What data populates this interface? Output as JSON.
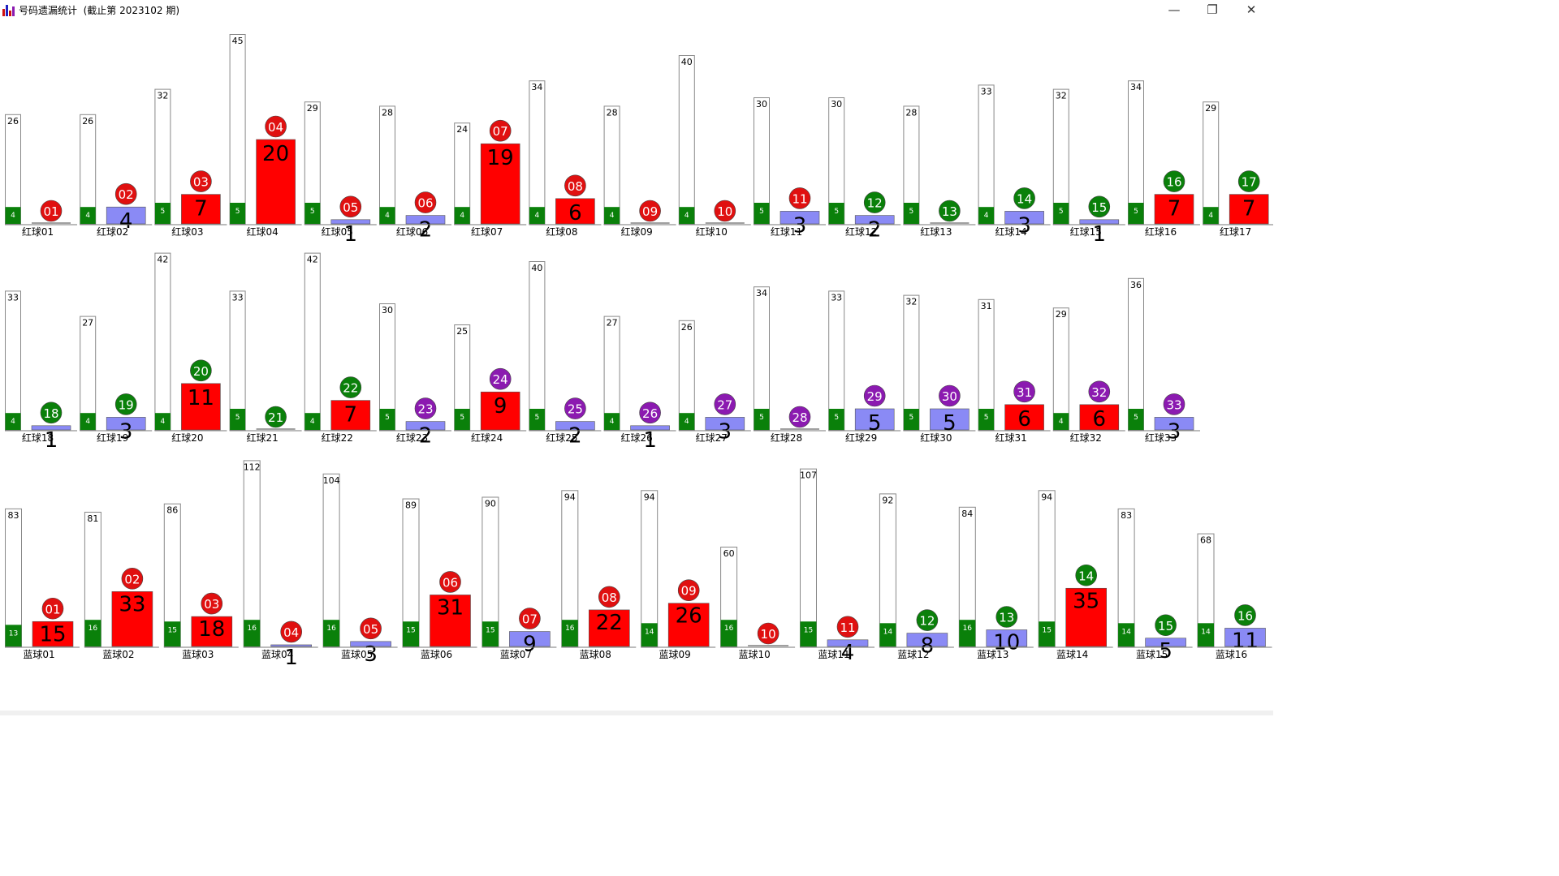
{
  "window": {
    "title": "号码遗漏统计  (截止第 2023102 期)",
    "minimize_glyph": "—",
    "restore_glyph": "❐",
    "close_glyph": "✕"
  },
  "colors": {
    "current_red": "#ff0000",
    "current_blue": "#8a8af5",
    "green": "#0a800a",
    "purple": "#8b1ab0",
    "circle_red": "#e01010",
    "outline": "#888888"
  },
  "chart_data": {
    "type": "bar",
    "sections": [
      {
        "name": "red-balls-1",
        "items": [
          {
            "label": "红球01",
            "num": "01",
            "max": 26,
            "avg": 4,
            "current": 0,
            "circle": "red"
          },
          {
            "label": "红球02",
            "num": "02",
            "max": 26,
            "avg": 4,
            "current": 4,
            "circle": "red"
          },
          {
            "label": "红球03",
            "num": "03",
            "max": 32,
            "avg": 5,
            "current": 7,
            "circle": "red"
          },
          {
            "label": "红球04",
            "num": "04",
            "max": 45,
            "avg": 5,
            "current": 20,
            "circle": "red"
          },
          {
            "label": "红球05",
            "num": "05",
            "max": 29,
            "avg": 5,
            "current": 1,
            "circle": "red"
          },
          {
            "label": "红球06",
            "num": "06",
            "max": 28,
            "avg": 4,
            "current": 2,
            "circle": "red"
          },
          {
            "label": "红球07",
            "num": "07",
            "max": 24,
            "avg": 4,
            "current": 19,
            "circle": "red"
          },
          {
            "label": "红球08",
            "num": "08",
            "max": 34,
            "avg": 4,
            "current": 6,
            "circle": "red"
          },
          {
            "label": "红球09",
            "num": "09",
            "max": 28,
            "avg": 4,
            "current": 0,
            "circle": "red"
          },
          {
            "label": "红球10",
            "num": "10",
            "max": 40,
            "avg": 4,
            "current": 0,
            "circle": "red"
          },
          {
            "label": "红球11",
            "num": "11",
            "max": 30,
            "avg": 5,
            "current": 3,
            "circle": "red"
          },
          {
            "label": "红球12",
            "num": "12",
            "max": 30,
            "avg": 5,
            "current": 2,
            "circle": "green"
          },
          {
            "label": "红球13",
            "num": "13",
            "max": 28,
            "avg": 5,
            "current": 0,
            "circle": "green"
          },
          {
            "label": "红球14",
            "num": "14",
            "max": 33,
            "avg": 4,
            "current": 3,
            "circle": "green"
          },
          {
            "label": "红球15",
            "num": "15",
            "max": 32,
            "avg": 5,
            "current": 1,
            "circle": "green"
          },
          {
            "label": "红球16",
            "num": "16",
            "max": 34,
            "avg": 5,
            "current": 7,
            "circle": "green"
          },
          {
            "label": "红球17",
            "num": "17",
            "max": 29,
            "avg": 4,
            "current": 7,
            "circle": "green"
          }
        ]
      },
      {
        "name": "red-balls-2",
        "items": [
          {
            "label": "红球18",
            "num": "18",
            "max": 33,
            "avg": 4,
            "current": 1,
            "circle": "green"
          },
          {
            "label": "红球19",
            "num": "19",
            "max": 27,
            "avg": 4,
            "current": 3,
            "circle": "green"
          },
          {
            "label": "红球20",
            "num": "20",
            "max": 42,
            "avg": 4,
            "current": 11,
            "circle": "green"
          },
          {
            "label": "红球21",
            "num": "21",
            "max": 33,
            "avg": 5,
            "current": 0,
            "circle": "green"
          },
          {
            "label": "红球22",
            "num": "22",
            "max": 42,
            "avg": 4,
            "current": 7,
            "circle": "green"
          },
          {
            "label": "红球23",
            "num": "23",
            "max": 30,
            "avg": 5,
            "current": 2,
            "circle": "purple"
          },
          {
            "label": "红球24",
            "num": "24",
            "max": 25,
            "avg": 5,
            "current": 9,
            "circle": "purple"
          },
          {
            "label": "红球25",
            "num": "25",
            "max": 40,
            "avg": 5,
            "current": 2,
            "circle": "purple"
          },
          {
            "label": "红球26",
            "num": "26",
            "max": 27,
            "avg": 4,
            "current": 1,
            "circle": "purple"
          },
          {
            "label": "红球27",
            "num": "27",
            "max": 26,
            "avg": 4,
            "current": 3,
            "circle": "purple"
          },
          {
            "label": "红球28",
            "num": "28",
            "max": 34,
            "avg": 5,
            "current": 0,
            "circle": "purple"
          },
          {
            "label": "红球29",
            "num": "29",
            "max": 33,
            "avg": 5,
            "current": 5,
            "circle": "purple"
          },
          {
            "label": "红球30",
            "num": "30",
            "max": 32,
            "avg": 5,
            "current": 5,
            "circle": "purple"
          },
          {
            "label": "红球31",
            "num": "31",
            "max": 31,
            "avg": 5,
            "current": 6,
            "circle": "purple"
          },
          {
            "label": "红球32",
            "num": "32",
            "max": 29,
            "avg": 4,
            "current": 6,
            "circle": "purple"
          },
          {
            "label": "红球33",
            "num": "33",
            "max": 36,
            "avg": 5,
            "current": 3,
            "circle": "purple"
          }
        ]
      },
      {
        "name": "blue-balls",
        "items": [
          {
            "label": "蓝球01",
            "num": "01",
            "max": 83,
            "avg": 13,
            "current": 15,
            "circle": "red"
          },
          {
            "label": "蓝球02",
            "num": "02",
            "max": 81,
            "avg": 16,
            "current": 33,
            "circle": "red"
          },
          {
            "label": "蓝球03",
            "num": "03",
            "max": 86,
            "avg": 15,
            "current": 18,
            "circle": "red"
          },
          {
            "label": "蓝球04",
            "num": "04",
            "max": 112,
            "avg": 16,
            "current": 1,
            "circle": "red"
          },
          {
            "label": "蓝球05",
            "num": "05",
            "max": 104,
            "avg": 16,
            "current": 3,
            "circle": "red"
          },
          {
            "label": "蓝球06",
            "num": "06",
            "max": 89,
            "avg": 15,
            "current": 31,
            "circle": "red"
          },
          {
            "label": "蓝球07",
            "num": "07",
            "max": 90,
            "avg": 15,
            "current": 9,
            "circle": "red"
          },
          {
            "label": "蓝球08",
            "num": "08",
            "max": 94,
            "avg": 16,
            "current": 22,
            "circle": "red"
          },
          {
            "label": "蓝球09",
            "num": "09",
            "max": 94,
            "avg": 14,
            "current": 26,
            "circle": "red"
          },
          {
            "label": "蓝球10",
            "num": "10",
            "max": 60,
            "avg": 16,
            "current": 0,
            "circle": "red"
          },
          {
            "label": "蓝球11",
            "num": "11",
            "max": 107,
            "avg": 15,
            "current": 4,
            "circle": "red"
          },
          {
            "label": "蓝球12",
            "num": "12",
            "max": 92,
            "avg": 14,
            "current": 8,
            "circle": "green"
          },
          {
            "label": "蓝球13",
            "num": "13",
            "max": 84,
            "avg": 16,
            "current": 10,
            "circle": "green"
          },
          {
            "label": "蓝球14",
            "num": "14",
            "max": 94,
            "avg": 15,
            "current": 35,
            "circle": "green"
          },
          {
            "label": "蓝球15",
            "num": "15",
            "max": 83,
            "avg": 14,
            "current": 5,
            "circle": "green"
          },
          {
            "label": "蓝球16",
            "num": "16",
            "max": 68,
            "avg": 14,
            "current": 11,
            "circle": "green"
          }
        ]
      }
    ]
  }
}
